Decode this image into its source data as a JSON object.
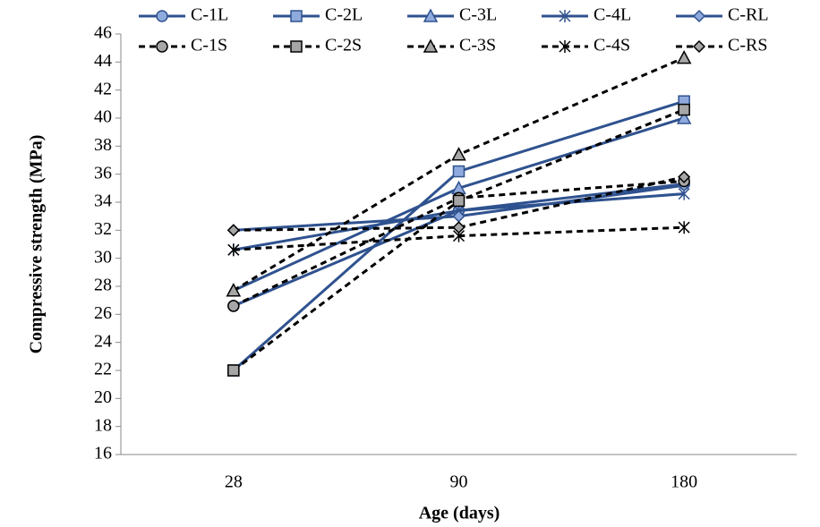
{
  "chart_data": {
    "type": "line",
    "x_label": "Age (days)",
    "y_label": "Compressive strength (MPa)",
    "categories": [
      "28",
      "90",
      "180"
    ],
    "ylim": [
      16,
      46
    ],
    "yticks": [
      16,
      18,
      20,
      22,
      24,
      26,
      28,
      30,
      32,
      34,
      36,
      38,
      40,
      42,
      44,
      46
    ],
    "series": [
      {
        "name": "C-1L",
        "color": "#2f528f",
        "marker": "circle",
        "dash": false,
        "values": [
          26.6,
          33.4,
          35.3
        ]
      },
      {
        "name": "C-2L",
        "color": "#2f528f",
        "marker": "square",
        "dash": false,
        "values": [
          22,
          36.2,
          41.2
        ]
      },
      {
        "name": "C-3L",
        "color": "#2f528f",
        "marker": "triangle",
        "dash": false,
        "values": [
          27.7,
          35,
          40
        ]
      },
      {
        "name": "C-4L",
        "color": "#2f528f",
        "marker": "asterisk",
        "dash": false,
        "values": [
          30.6,
          33.4,
          34.6
        ]
      },
      {
        "name": "C-RL",
        "color": "#2f528f",
        "marker": "diamond",
        "dash": false,
        "values": [
          32,
          33,
          35.2
        ]
      },
      {
        "name": "C-1S",
        "color": "#000000",
        "marker": "circle",
        "dash": true,
        "values": [
          26.6,
          34.3,
          35.5
        ]
      },
      {
        "name": "C-2S",
        "color": "#000000",
        "marker": "square",
        "dash": true,
        "values": [
          22,
          34.1,
          40.6
        ]
      },
      {
        "name": "C-3S",
        "color": "#000000",
        "marker": "triangle",
        "dash": true,
        "values": [
          27.7,
          37.4,
          44.3
        ]
      },
      {
        "name": "C-4S",
        "color": "#000000",
        "marker": "asterisk",
        "dash": true,
        "values": [
          30.6,
          31.6,
          32.2
        ]
      },
      {
        "name": "C-RS",
        "color": "#000000",
        "marker": "diamond",
        "dash": true,
        "values": [
          32,
          32.2,
          35.8
        ]
      }
    ]
  }
}
